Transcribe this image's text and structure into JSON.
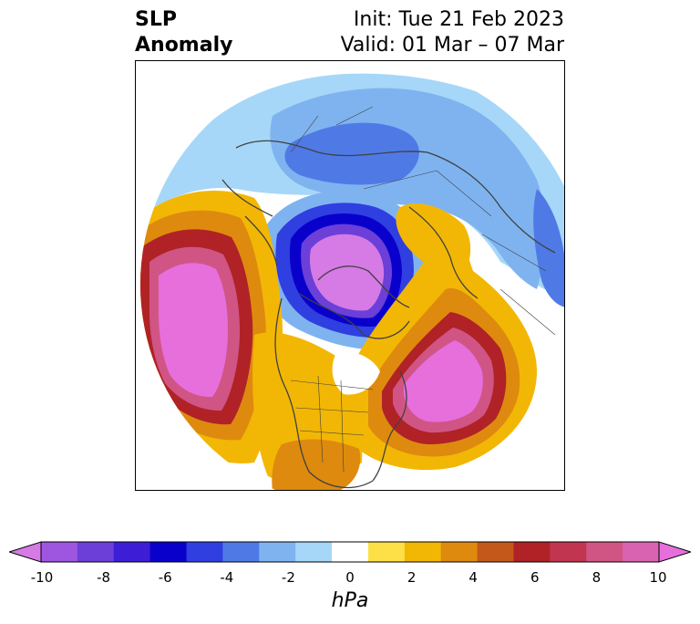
{
  "title": {
    "left_line1": "SLP",
    "left_line2": "Anomaly",
    "right_line1": "Init: Tue 21 Feb 2023",
    "right_line2": "Valid: 01 Mar – 07 Mar"
  },
  "colorbar": {
    "unit": "hPa",
    "ticks": [
      "-10",
      "-8",
      "-6",
      "-4",
      "-2",
      "0",
      "2",
      "4",
      "6",
      "8",
      "10"
    ],
    "colors": [
      "#d67ae6",
      "#9e55e0",
      "#6b3fd8",
      "#3d1ed6",
      "#0a00cc",
      "#2f3fe0",
      "#4f7ae6",
      "#7fb3f0",
      "#a6d7f8",
      "#ffffff",
      "#fde047",
      "#f2b705",
      "#de8a0f",
      "#c4581a",
      "#b02226",
      "#c23550",
      "#d05585",
      "#d963b0",
      "#e66fdc"
    ],
    "extend": "both"
  },
  "map": {
    "projection": "north-polar-stereographic",
    "field": "SLP anomaly",
    "features": [
      "coastlines",
      "country-borders",
      "us-state-borders"
    ],
    "highs": [
      "north-pacific-alaska",
      "north-atlantic-eastern-canada"
    ],
    "lows": [
      "arctic-greenland",
      "eurasia-siberia"
    ]
  }
}
